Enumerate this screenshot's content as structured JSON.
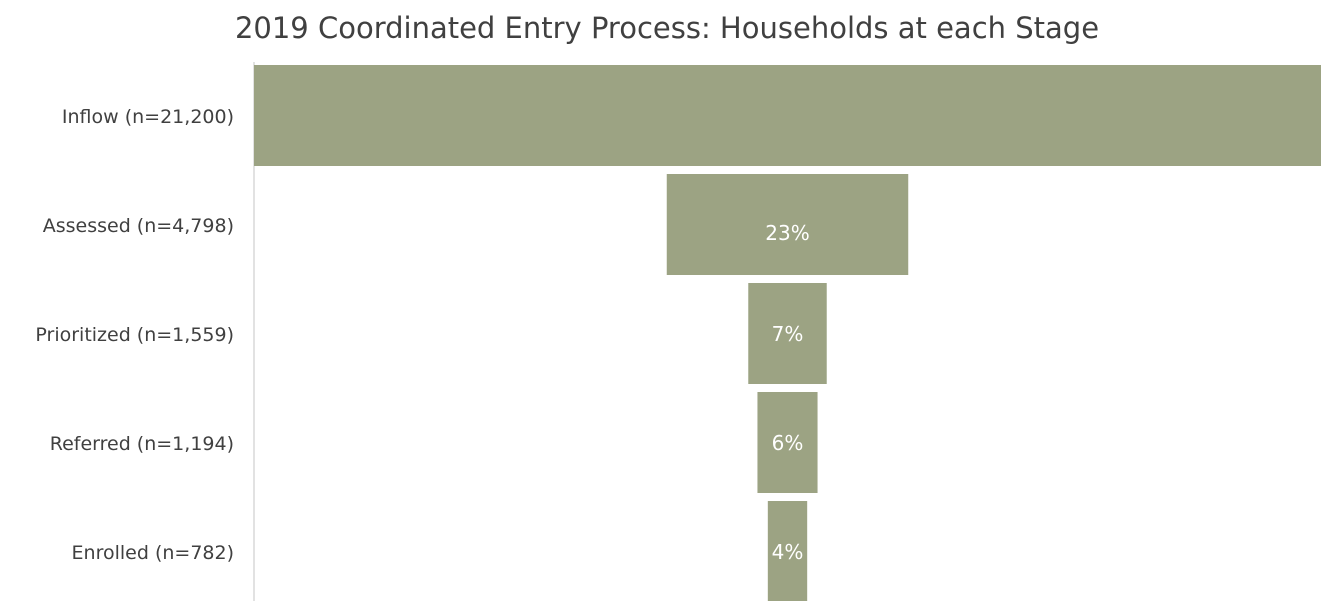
{
  "chart_data": {
    "type": "funnel",
    "title": "2019 Coordinated Entry Process: Households at each Stage",
    "categories": [
      "Inflow (n=21,200)",
      "Assessed (n=4,798)",
      "Prioritized (n=1,559)",
      "Referred (n=1,194)",
      "Enrolled (n=782)"
    ],
    "values": [
      21200,
      4798,
      1559,
      1194,
      782
    ],
    "share_labels": [
      null,
      "23%",
      "7%",
      "6%",
      "4%"
    ],
    "color": "#9ca383"
  }
}
